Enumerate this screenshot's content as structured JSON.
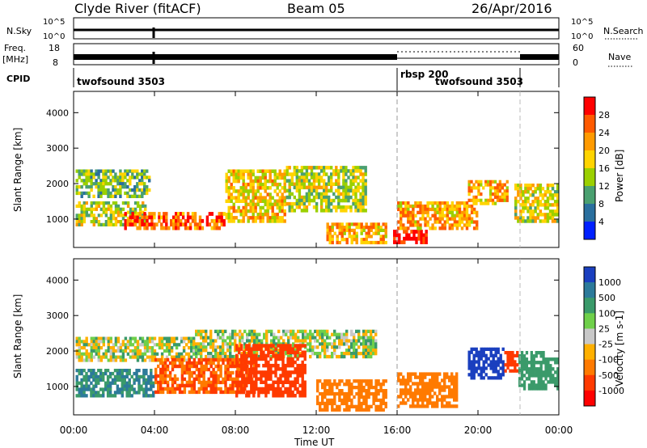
{
  "header": {
    "station": "Clyde River (fitACF)",
    "beam": "Beam 05",
    "date": "26/Apr/2016"
  },
  "top_panels": {
    "nsky_label": "N.Sky",
    "nsky_ticks": [
      "10^5",
      "10^0"
    ],
    "nsearch_label": "N.Search",
    "nsearch_ticks": [
      "10^5",
      "10^0"
    ],
    "freq_label_1": "Freq.",
    "freq_label_2": "[MHz]",
    "freq_ticks": [
      "18",
      "8"
    ],
    "nave_label": "Nave",
    "nave_ticks": [
      "60",
      "0"
    ],
    "cpid_label": "CPID",
    "cpid_segments": [
      {
        "label": "twofsound 3503",
        "start": 0,
        "end": 16
      },
      {
        "label": "rbsp 200",
        "start": 16,
        "end": 22
      },
      {
        "label": "twofsound 3503",
        "start": 16,
        "end": 22,
        "offset": true
      }
    ]
  },
  "axes": {
    "xlabel": "Time UT",
    "x_ticks": [
      "00:00",
      "04:00",
      "08:00",
      "12:00",
      "16:00",
      "20:00",
      "00:00"
    ],
    "ylabel": "Slant Range [km]",
    "y_ticks": [
      "4000",
      "3000",
      "2000",
      "1000"
    ]
  },
  "power_colorbar": {
    "label": "Power [dB]",
    "ticks": [
      "28",
      "24",
      "20",
      "16",
      "12",
      "8",
      "4"
    ],
    "colors": [
      "#ff0000",
      "#ff5a00",
      "#ff9a00",
      "#ffd400",
      "#9bd000",
      "#4aa070",
      "#2a6f9e",
      "#0020ff"
    ]
  },
  "velocity_colorbar": {
    "label": "Velocity [m s-1]",
    "ticks": [
      "1000",
      "500",
      "100",
      "25",
      "-25",
      "-100",
      "-500",
      "-1000"
    ],
    "colors": [
      "#1a3fbf",
      "#2c7a9a",
      "#3a9a6a",
      "#6fd04a",
      "#c8c8c8",
      "#ffb000",
      "#ff7a00",
      "#ff3a00",
      "#ff0000"
    ]
  },
  "chart_data": [
    {
      "type": "heatmap",
      "title": "Power",
      "xlabel": "Time UT",
      "ylabel": "Slant Range [km]",
      "x_range_hours": [
        0,
        24
      ],
      "y_range_km": [
        200,
        4600
      ],
      "colorbar_label": "Power [dB]",
      "colorbar_range": [
        0,
        30
      ],
      "bands": [
        {
          "t0": 0.1,
          "t1": 3.8,
          "r0": 1600,
          "r1": 2400,
          "level": 12
        },
        {
          "t0": 0.1,
          "t1": 3.6,
          "r0": 800,
          "r1": 1500,
          "level": 14
        },
        {
          "t0": 2.5,
          "t1": 7.5,
          "r0": 700,
          "r1": 1200,
          "level": 24
        },
        {
          "t0": 7.5,
          "t1": 10.5,
          "r0": 900,
          "r1": 2400,
          "level": 18
        },
        {
          "t0": 10.5,
          "t1": 14.5,
          "r0": 1200,
          "r1": 2500,
          "level": 14
        },
        {
          "t0": 12.5,
          "t1": 15.5,
          "r0": 300,
          "r1": 900,
          "level": 20
        },
        {
          "t0": 15.8,
          "t1": 17.5,
          "r0": 300,
          "r1": 700,
          "level": 30
        },
        {
          "t0": 16.0,
          "t1": 20.0,
          "r0": 700,
          "r1": 1500,
          "level": 20
        },
        {
          "t0": 19.5,
          "t1": 21.5,
          "r0": 1400,
          "r1": 2100,
          "level": 20
        },
        {
          "t0": 21.8,
          "t1": 24.0,
          "r0": 900,
          "r1": 2000,
          "level": 16
        }
      ]
    },
    {
      "type": "heatmap",
      "title": "Velocity",
      "xlabel": "Time UT",
      "ylabel": "Slant Range [km]",
      "x_range_hours": [
        0,
        24
      ],
      "y_range_km": [
        200,
        4600
      ],
      "colorbar_label": "Velocity [m s-1]",
      "colorbar_range": [
        -1000,
        1000
      ],
      "bands": [
        {
          "t0": 0.1,
          "t1": 6.0,
          "r0": 1700,
          "r1": 2400,
          "level": 0
        },
        {
          "t0": 0.1,
          "t1": 4.0,
          "r0": 700,
          "r1": 1500,
          "level": 300
        },
        {
          "t0": 6.0,
          "t1": 15.0,
          "r0": 1800,
          "r1": 2600,
          "level": 0
        },
        {
          "t0": 4.0,
          "t1": 9.0,
          "r0": 800,
          "r1": 1800,
          "level": -400
        },
        {
          "t0": 8.0,
          "t1": 11.5,
          "r0": 700,
          "r1": 2200,
          "level": -600
        },
        {
          "t0": 12.0,
          "t1": 15.5,
          "r0": 300,
          "r1": 1200,
          "level": -300
        },
        {
          "t0": 16.0,
          "t1": 19.0,
          "r0": 400,
          "r1": 1400,
          "level": -300
        },
        {
          "t0": 19.5,
          "t1": 21.3,
          "r0": 1200,
          "r1": 2100,
          "level": 900
        },
        {
          "t0": 21.3,
          "t1": 22.0,
          "r0": 1400,
          "r1": 2000,
          "level": -700
        },
        {
          "t0": 22.0,
          "t1": 24.0,
          "r0": 900,
          "r1": 2000,
          "level": 200
        }
      ]
    }
  ]
}
